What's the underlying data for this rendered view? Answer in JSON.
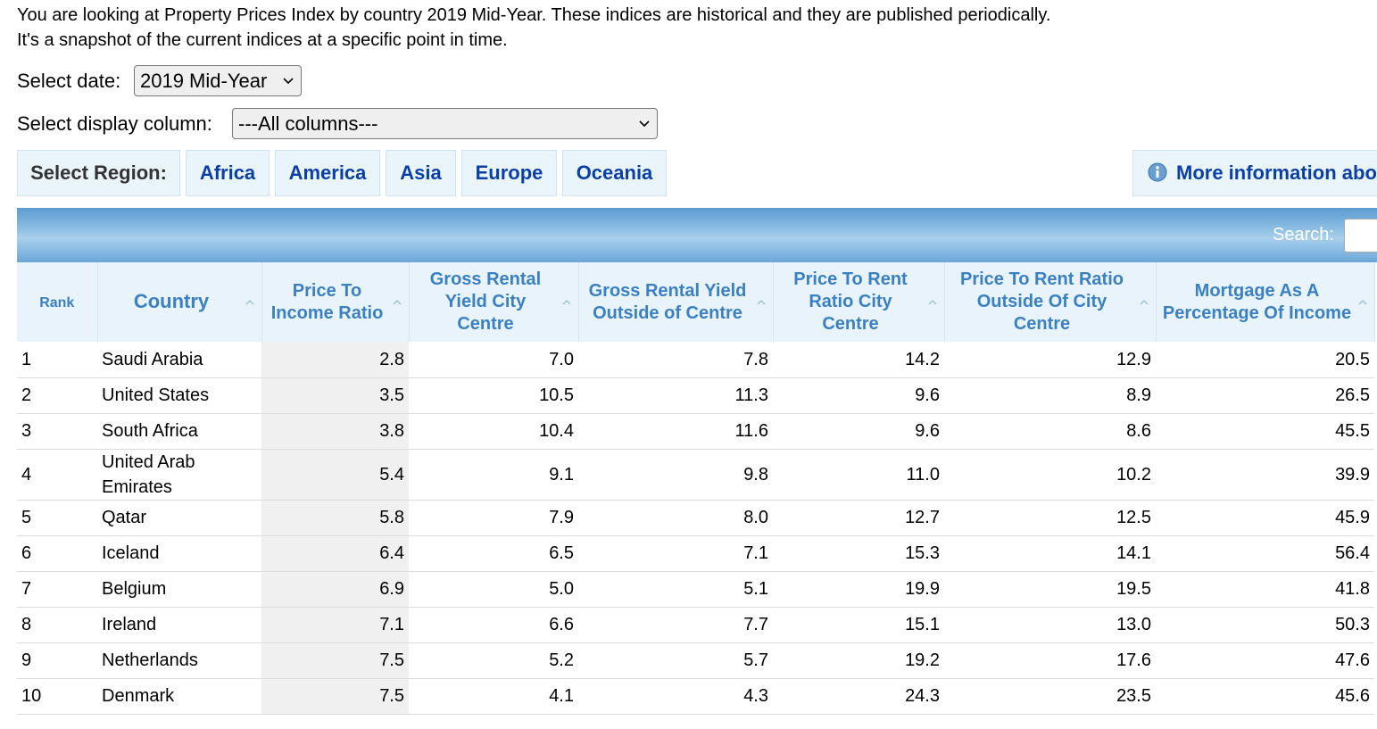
{
  "intro": {
    "line1": "You are looking at Property Prices Index by country 2019 Mid-Year. These indices are historical and they are published periodically.",
    "line2": "It's a snapshot of the current indices at a specific point in time."
  },
  "controls": {
    "date_label": "Select date:",
    "date_value": "2019 Mid-Year",
    "column_label": "Select display column:",
    "column_value": "---All columns---"
  },
  "regions": {
    "label": "Select Region:",
    "buttons": [
      "Africa",
      "America",
      "Asia",
      "Europe",
      "Oceania"
    ],
    "more_info": "More information abo"
  },
  "table": {
    "search_label": "Search:",
    "headers": [
      "Rank",
      "Country",
      "Price To Income Ratio",
      "Gross Rental Yield City Centre",
      "Gross Rental Yield Outside of Centre",
      "Price To Rent Ratio City Centre",
      "Price To Rent Ratio Outside Of City Centre",
      "Mortgage As A Percentage Of Income"
    ],
    "rows": [
      [
        "1",
        "Saudi Arabia",
        "2.8",
        "7.0",
        "7.8",
        "14.2",
        "12.9",
        "20.5"
      ],
      [
        "2",
        "United States",
        "3.5",
        "10.5",
        "11.3",
        "9.6",
        "8.9",
        "26.5"
      ],
      [
        "3",
        "South Africa",
        "3.8",
        "10.4",
        "11.6",
        "9.6",
        "8.6",
        "45.5"
      ],
      [
        "4",
        "United Arab Emirates",
        "5.4",
        "9.1",
        "9.8",
        "11.0",
        "10.2",
        "39.9"
      ],
      [
        "5",
        "Qatar",
        "5.8",
        "7.9",
        "8.0",
        "12.7",
        "12.5",
        "45.9"
      ],
      [
        "6",
        "Iceland",
        "6.4",
        "6.5",
        "7.1",
        "15.3",
        "14.1",
        "56.4"
      ],
      [
        "7",
        "Belgium",
        "6.9",
        "5.0",
        "5.1",
        "19.9",
        "19.5",
        "41.8"
      ],
      [
        "8",
        "Ireland",
        "7.1",
        "6.6",
        "7.7",
        "15.1",
        "13.0",
        "50.3"
      ],
      [
        "9",
        "Netherlands",
        "7.5",
        "5.2",
        "5.7",
        "19.2",
        "17.6",
        "47.6"
      ],
      [
        "10",
        "Denmark",
        "7.5",
        "4.1",
        "4.3",
        "24.3",
        "23.5",
        "45.6"
      ]
    ]
  }
}
